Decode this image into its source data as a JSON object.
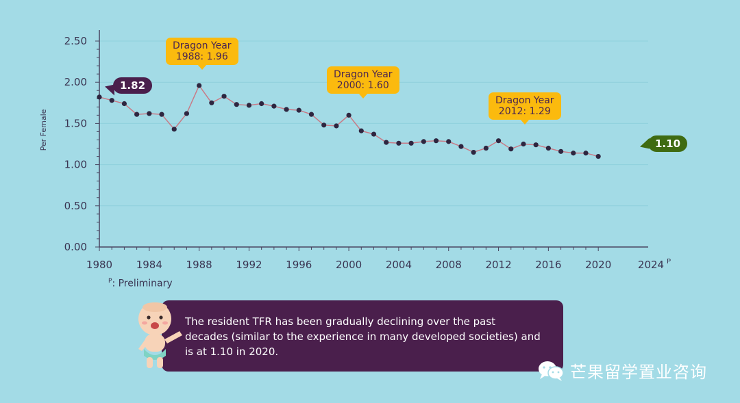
{
  "chart_data": {
    "type": "line",
    "ylabel": "Per Female",
    "ylim": [
      0,
      2.5
    ],
    "y_ticks": [
      "0.00",
      "0.50",
      "1.00",
      "1.50",
      "2.00",
      "2.50"
    ],
    "xlim": [
      1980,
      2024
    ],
    "x_ticks": [
      "1980",
      "1984",
      "1988",
      "1992",
      "1996",
      "2000",
      "2004",
      "2008",
      "2012",
      "2016",
      "2020"
    ],
    "x_tick_last": "2024",
    "x_tick_last_sup": "P",
    "x": [
      1980,
      1981,
      1982,
      1983,
      1984,
      1985,
      1986,
      1987,
      1988,
      1989,
      1990,
      1991,
      1992,
      1993,
      1994,
      1995,
      1996,
      1997,
      1998,
      1999,
      2000,
      2001,
      2002,
      2003,
      2004,
      2005,
      2006,
      2007,
      2008,
      2009,
      2010,
      2011,
      2012,
      2013,
      2014,
      2015,
      2016,
      2017,
      2018,
      2019,
      2020
    ],
    "values": [
      1.82,
      1.78,
      1.74,
      1.61,
      1.62,
      1.61,
      1.43,
      1.62,
      1.96,
      1.75,
      1.83,
      1.73,
      1.72,
      1.74,
      1.71,
      1.67,
      1.66,
      1.61,
      1.48,
      1.47,
      1.6,
      1.41,
      1.37,
      1.27,
      1.26,
      1.26,
      1.28,
      1.29,
      1.28,
      1.22,
      1.15,
      1.2,
      1.29,
      1.19,
      1.25,
      1.24,
      1.2,
      1.16,
      1.14,
      1.14,
      1.1
    ],
    "callouts": [
      {
        "line1": "Dragon Year",
        "line2": "1988: 1.96"
      },
      {
        "line1": "Dragon Year",
        "line2": "2000: 1.60"
      },
      {
        "line1": "Dragon Year",
        "line2": "2012: 1.29"
      }
    ],
    "start_label": "1.82",
    "end_label": "1.10",
    "colors": {
      "background": "#a3dbe6",
      "line": "#c97a86",
      "marker": "#2e2640",
      "axis": "#4a4460",
      "grid": "#8fd0dc",
      "callout": "#fbba0e",
      "start_pill": "#4a1f4c",
      "end_pill": "#3f6b12"
    }
  },
  "footnote": {
    "sup": "P",
    "text": ": Preliminary"
  },
  "info": {
    "text": "The resident TFR has been gradually declining over the past decades (similar to the experience in many developed societies) and is at 1.10 in 2020."
  },
  "watermark": {
    "icon": "wechat-icon",
    "text": "芒果留学置业咨询"
  }
}
